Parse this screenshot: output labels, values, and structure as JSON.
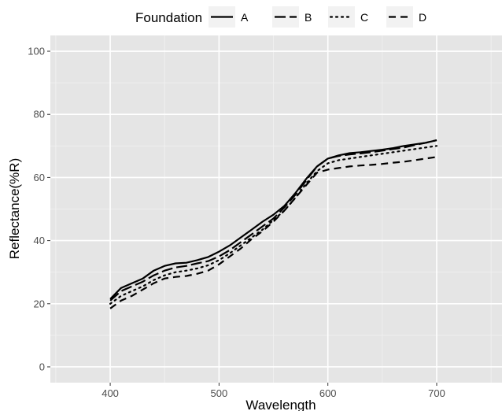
{
  "chart_data": {
    "type": "line",
    "xlabel": "Wavelength",
    "ylabel": "Reflectance(%R)",
    "xlim": [
      345,
      760
    ],
    "ylim": [
      -5,
      105
    ],
    "x_ticks": [
      400,
      500,
      600,
      700
    ],
    "y_ticks": [
      0,
      20,
      40,
      60,
      80,
      100
    ],
    "x_tick_labels": [
      "400",
      "500",
      "600",
      "700"
    ],
    "y_tick_labels": [
      "0",
      "20",
      "40",
      "60",
      "80",
      "100"
    ],
    "grid": true,
    "legend": {
      "title": "Foundation",
      "position": "top"
    },
    "x": [
      400,
      410,
      420,
      430,
      440,
      450,
      460,
      470,
      480,
      490,
      500,
      510,
      520,
      530,
      540,
      550,
      560,
      570,
      580,
      590,
      600,
      610,
      620,
      630,
      640,
      650,
      660,
      670,
      680,
      690,
      700
    ],
    "series": [
      {
        "name": "A",
        "dash": "solid",
        "values": [
          21.5,
          25.0,
          26.5,
          28.0,
          30.5,
          32.0,
          32.8,
          33.0,
          33.8,
          34.8,
          36.5,
          38.5,
          41.0,
          43.5,
          46.0,
          48.2,
          51.0,
          55.0,
          59.5,
          63.5,
          66.0,
          67.0,
          67.7,
          68.0,
          68.4,
          68.8,
          69.3,
          70.0,
          70.5,
          71.0,
          71.8
        ]
      },
      {
        "name": "B",
        "dash": "longdash",
        "values": [
          21.0,
          24.0,
          25.5,
          27.0,
          29.0,
          30.5,
          31.5,
          32.0,
          32.8,
          33.5,
          35.0,
          37.0,
          39.5,
          42.0,
          44.5,
          47.0,
          50.5,
          54.5,
          59.0,
          63.5,
          66.0,
          66.8,
          67.3,
          67.6,
          68.0,
          68.5,
          69.0,
          69.5,
          70.3,
          71.0,
          71.8
        ]
      },
      {
        "name": "C",
        "dash": "dotted",
        "values": [
          20.0,
          22.5,
          24.0,
          25.5,
          27.5,
          29.0,
          30.0,
          30.5,
          31.2,
          32.2,
          33.8,
          36.0,
          38.5,
          41.0,
          43.5,
          46.5,
          49.5,
          53.5,
          58.0,
          62.0,
          64.5,
          65.5,
          66.0,
          66.5,
          67.0,
          67.5,
          68.0,
          68.5,
          69.0,
          69.5,
          70.0
        ]
      },
      {
        "name": "D",
        "dash": "dashed",
        "values": [
          18.5,
          21.0,
          22.5,
          24.5,
          26.5,
          28.0,
          28.5,
          28.8,
          29.5,
          30.5,
          32.5,
          35.0,
          37.5,
          40.5,
          43.0,
          46.0,
          49.5,
          53.5,
          57.5,
          61.5,
          62.5,
          63.0,
          63.5,
          63.8,
          64.0,
          64.3,
          64.7,
          65.0,
          65.5,
          66.0,
          66.5
        ]
      }
    ]
  }
}
